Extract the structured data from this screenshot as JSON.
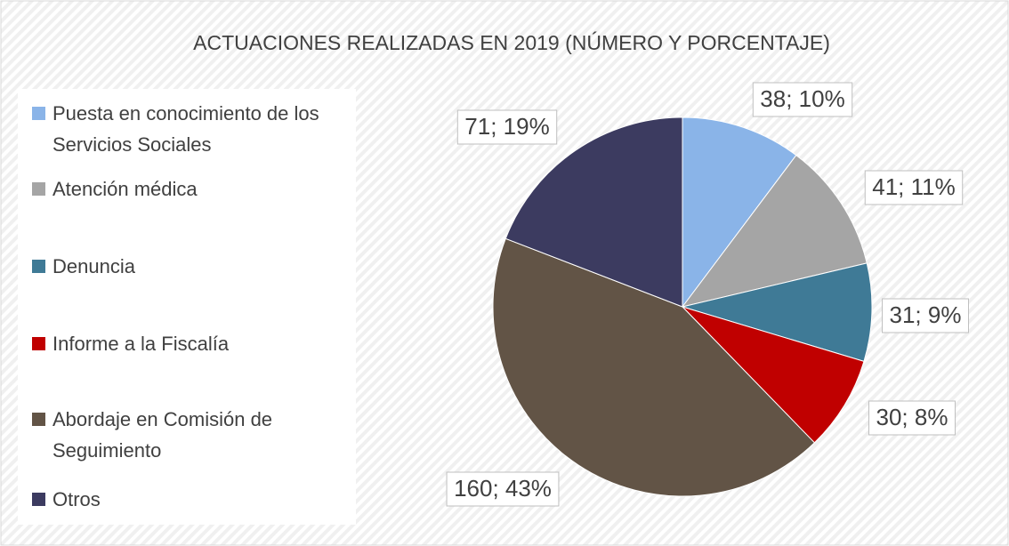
{
  "chart_data": {
    "type": "pie",
    "title": "ACTUACIONES REALIZADAS EN 2019 (NÚMERO Y PORCENTAJE)",
    "categories": [
      "Puesta en conocimiento de los Servicios Sociales",
      "Atención médica",
      "Denuncia",
      "Informe a la Fiscalía",
      "Abordaje en Comisión de Seguimiento",
      "Otros"
    ],
    "values": [
      38,
      41,
      31,
      30,
      160,
      71
    ],
    "value_labels": [
      "38; 10%",
      "41; 11%",
      "31; 9%",
      "30; 8%",
      "160; 43%",
      "71; 19%"
    ],
    "colors": [
      "#8ab4e8",
      "#a5a5a5",
      "#3f7a96",
      "#c00000",
      "#625446",
      "#3c3b60"
    ],
    "legend": "left"
  }
}
